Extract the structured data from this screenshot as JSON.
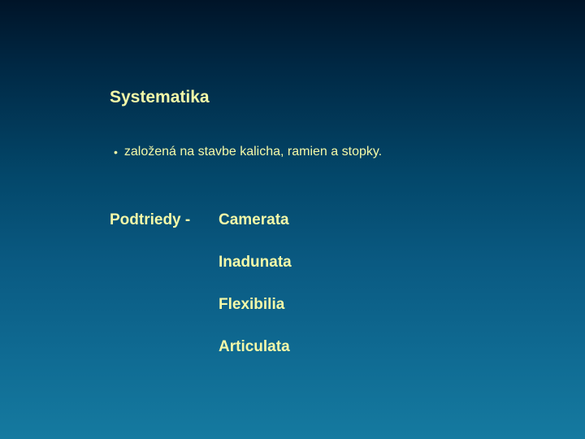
{
  "slide": {
    "background": {
      "gradient_stops": [
        "#001428",
        "#002844",
        "#03476a",
        "#0a5a82",
        "#0f6a92",
        "#157aa0"
      ],
      "direction": "top-to-bottom"
    },
    "text_color": "#f4f9a8",
    "font_family": "Arial",
    "title": {
      "text": "Systematika",
      "fontsize": 21,
      "weight": "bold"
    },
    "bullet": {
      "marker": "•",
      "text": "založená na  stavbe kalicha, ramien a stopky.",
      "fontsize": 16
    },
    "subheading": {
      "label": "Podtriedy - ",
      "fontsize": 19,
      "weight": "bold",
      "items": [
        "Camerata",
        "Inadunata",
        "Flexibilia",
        "Articulata"
      ]
    }
  }
}
